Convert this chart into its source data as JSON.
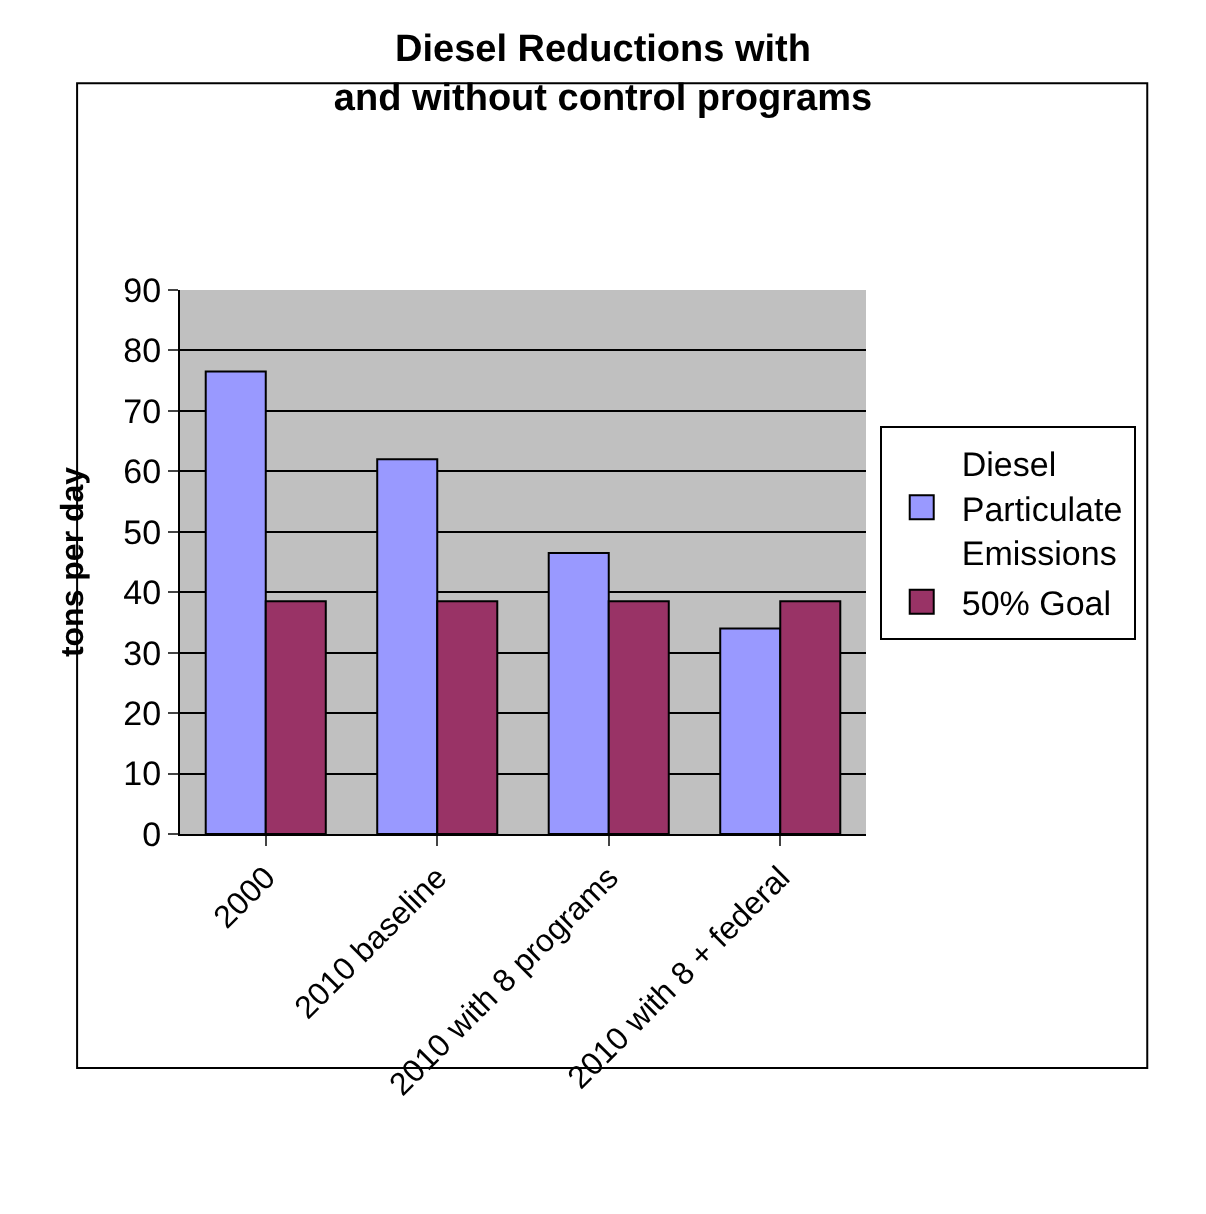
{
  "chart_data": {
    "type": "bar",
    "title": "Diesel Reductions with and without control programs",
    "ylabel": "tons per day",
    "categories": [
      "2000",
      "2010 baseline",
      "2010 with 8 programs",
      "2010 with 8 + federal"
    ],
    "series": [
      {
        "name": "Diesel Particulate Emissions",
        "color": "#9999ff",
        "values": [
          76.5,
          62,
          46.5,
          34
        ]
      },
      {
        "name": "50% Goal",
        "color": "#993366",
        "values": [
          38.5,
          38.5,
          38.5,
          38.5
        ]
      }
    ],
    "ylim": [
      0,
      90
    ],
    "yticks": [
      0,
      10,
      20,
      30,
      40,
      50,
      60,
      70,
      80,
      90
    ],
    "grid": "y",
    "legend": "right"
  }
}
